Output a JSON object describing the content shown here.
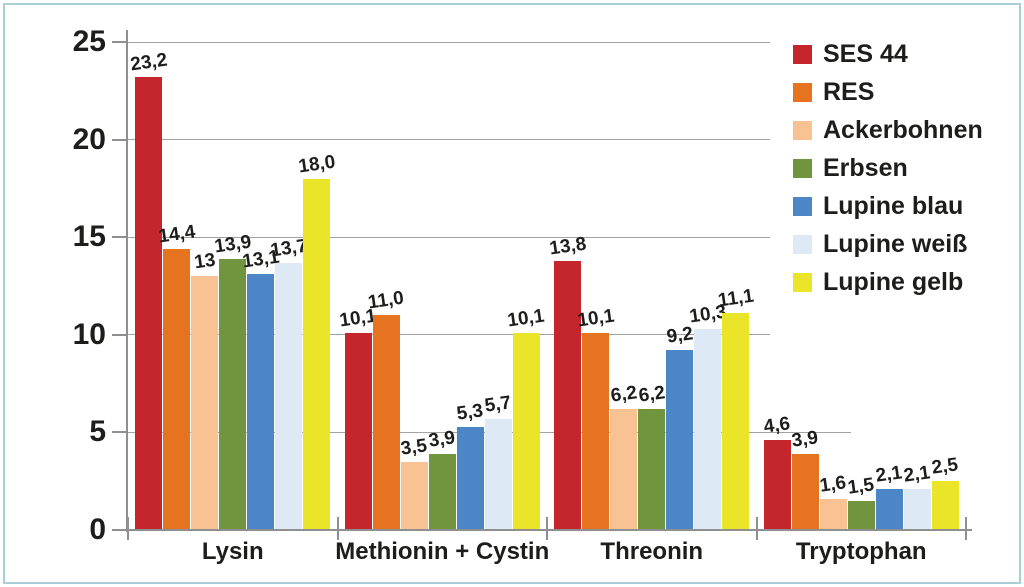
{
  "figure": {
    "border_color": "#a9cdd9",
    "background": "#ffffff"
  },
  "chart_data": {
    "type": "bar",
    "title": "",
    "xlabel": "",
    "ylabel": "",
    "categories": [
      "Lysin",
      "Methionin + Cystin",
      "Threonin",
      "Tryptophan"
    ],
    "series": [
      {
        "name": "SES 44",
        "color": "#c5262e",
        "values": [
          23.2,
          10.1,
          13.8,
          4.6
        ],
        "labels": [
          "23,2",
          "10,1",
          "13,8",
          "4,6"
        ]
      },
      {
        "name": "RES",
        "color": "#e5731f",
        "values": [
          14.4,
          11.0,
          10.1,
          3.9
        ],
        "labels": [
          "14,4",
          "11,0",
          "10,1",
          "3,9"
        ]
      },
      {
        "name": "Ackerbohnen",
        "color": "#f9c292",
        "values": [
          13,
          3.5,
          6.2,
          1.6
        ],
        "labels": [
          "13",
          "3,5",
          "6,2",
          "1,6"
        ]
      },
      {
        "name": "Erbsen",
        "color": "#71953e",
        "values": [
          13.9,
          3.9,
          6.2,
          1.5
        ],
        "labels": [
          "13,9",
          "3,9",
          "6,2",
          "1,5"
        ]
      },
      {
        "name": "Lupine blau",
        "color": "#4c86c6",
        "values": [
          13.1,
          5.3,
          9.2,
          2.1
        ],
        "labels": [
          "13,1",
          "5,3",
          "9,2",
          "2,1"
        ]
      },
      {
        "name": "Lupine weiß",
        "color": "#dde9f4",
        "values": [
          13.7,
          5.7,
          10.3,
          2.1
        ],
        "labels": [
          "13,7",
          "5,7",
          "10,3",
          "2,1"
        ]
      },
      {
        "name": "Lupine gelb",
        "color": "#ebe52a",
        "values": [
          18.0,
          10.1,
          11.1,
          2.5
        ],
        "labels": [
          "18,0",
          "10,1",
          "11,1",
          "2,5"
        ]
      }
    ],
    "y_axis": {
      "min": 0,
      "max": 25,
      "step": 5,
      "tick_labels": [
        "25",
        "20",
        "15",
        "10",
        "5",
        "0"
      ]
    },
    "legend": {
      "position": "top-right",
      "entries": [
        "SES 44",
        "RES",
        "Ackerbohnen",
        "Erbsen",
        "Lupine blau",
        "Lupine weiß",
        "Lupine gelb"
      ]
    },
    "grid": true,
    "axis_color": "#8f8f8f",
    "grid_color": "#a3a3a3",
    "text_color": "#1d1d1b"
  }
}
